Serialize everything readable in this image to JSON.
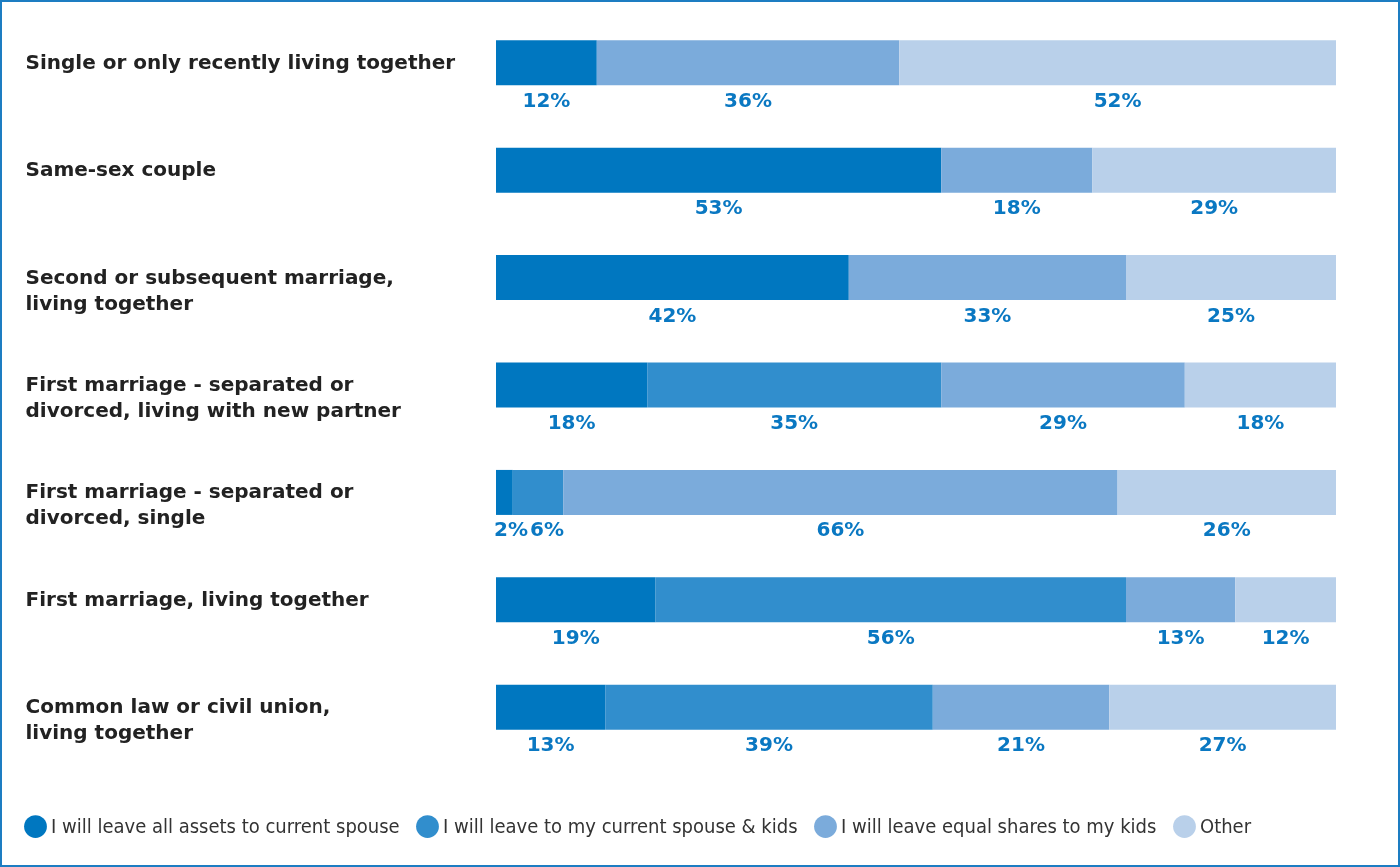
{
  "chart_data": {
    "type": "bar",
    "orientation": "horizontal",
    "stacked": true,
    "legend": "bottom",
    "categories": [
      "Single or only recently living together",
      "Same-sex couple",
      "Second or subsequent marriage, living together",
      "First marriage - separated or divorced, living with new partner",
      "First marriage - separated or divorced, single",
      "First marriage, living together",
      "Common law or civil union, living together"
    ],
    "series": [
      {
        "name": "I will leave all assets to current spouse",
        "color": "#0077c0",
        "values": [
          12,
          53,
          42,
          18,
          2,
          19,
          13
        ],
        "value_labels": [
          "12%",
          "53%",
          "42%",
          "18%",
          "2%",
          "19%",
          "13%"
        ]
      },
      {
        "name": "I will leave to my current spouse & kids",
        "color": "#318ecd",
        "values": [
          null,
          null,
          null,
          35,
          6,
          56,
          39
        ],
        "value_labels": [
          null,
          null,
          null,
          "35%",
          "6%",
          "56%",
          "39%"
        ]
      },
      {
        "name": "I will leave equal shares to my kids",
        "color": "#7babdb",
        "values": [
          36,
          18,
          33,
          29,
          66,
          13,
          21
        ],
        "value_labels": [
          "36%",
          "18%",
          "33%",
          "29%",
          "66%",
          "13%",
          "21%"
        ]
      },
      {
        "name": "Other",
        "color": "#b9d0ea",
        "values": [
          52,
          29,
          25,
          18,
          26,
          12,
          27
        ],
        "value_labels": [
          "52%",
          "29%",
          "25%",
          "18%",
          "26%",
          "12%",
          "27%"
        ]
      }
    ]
  }
}
